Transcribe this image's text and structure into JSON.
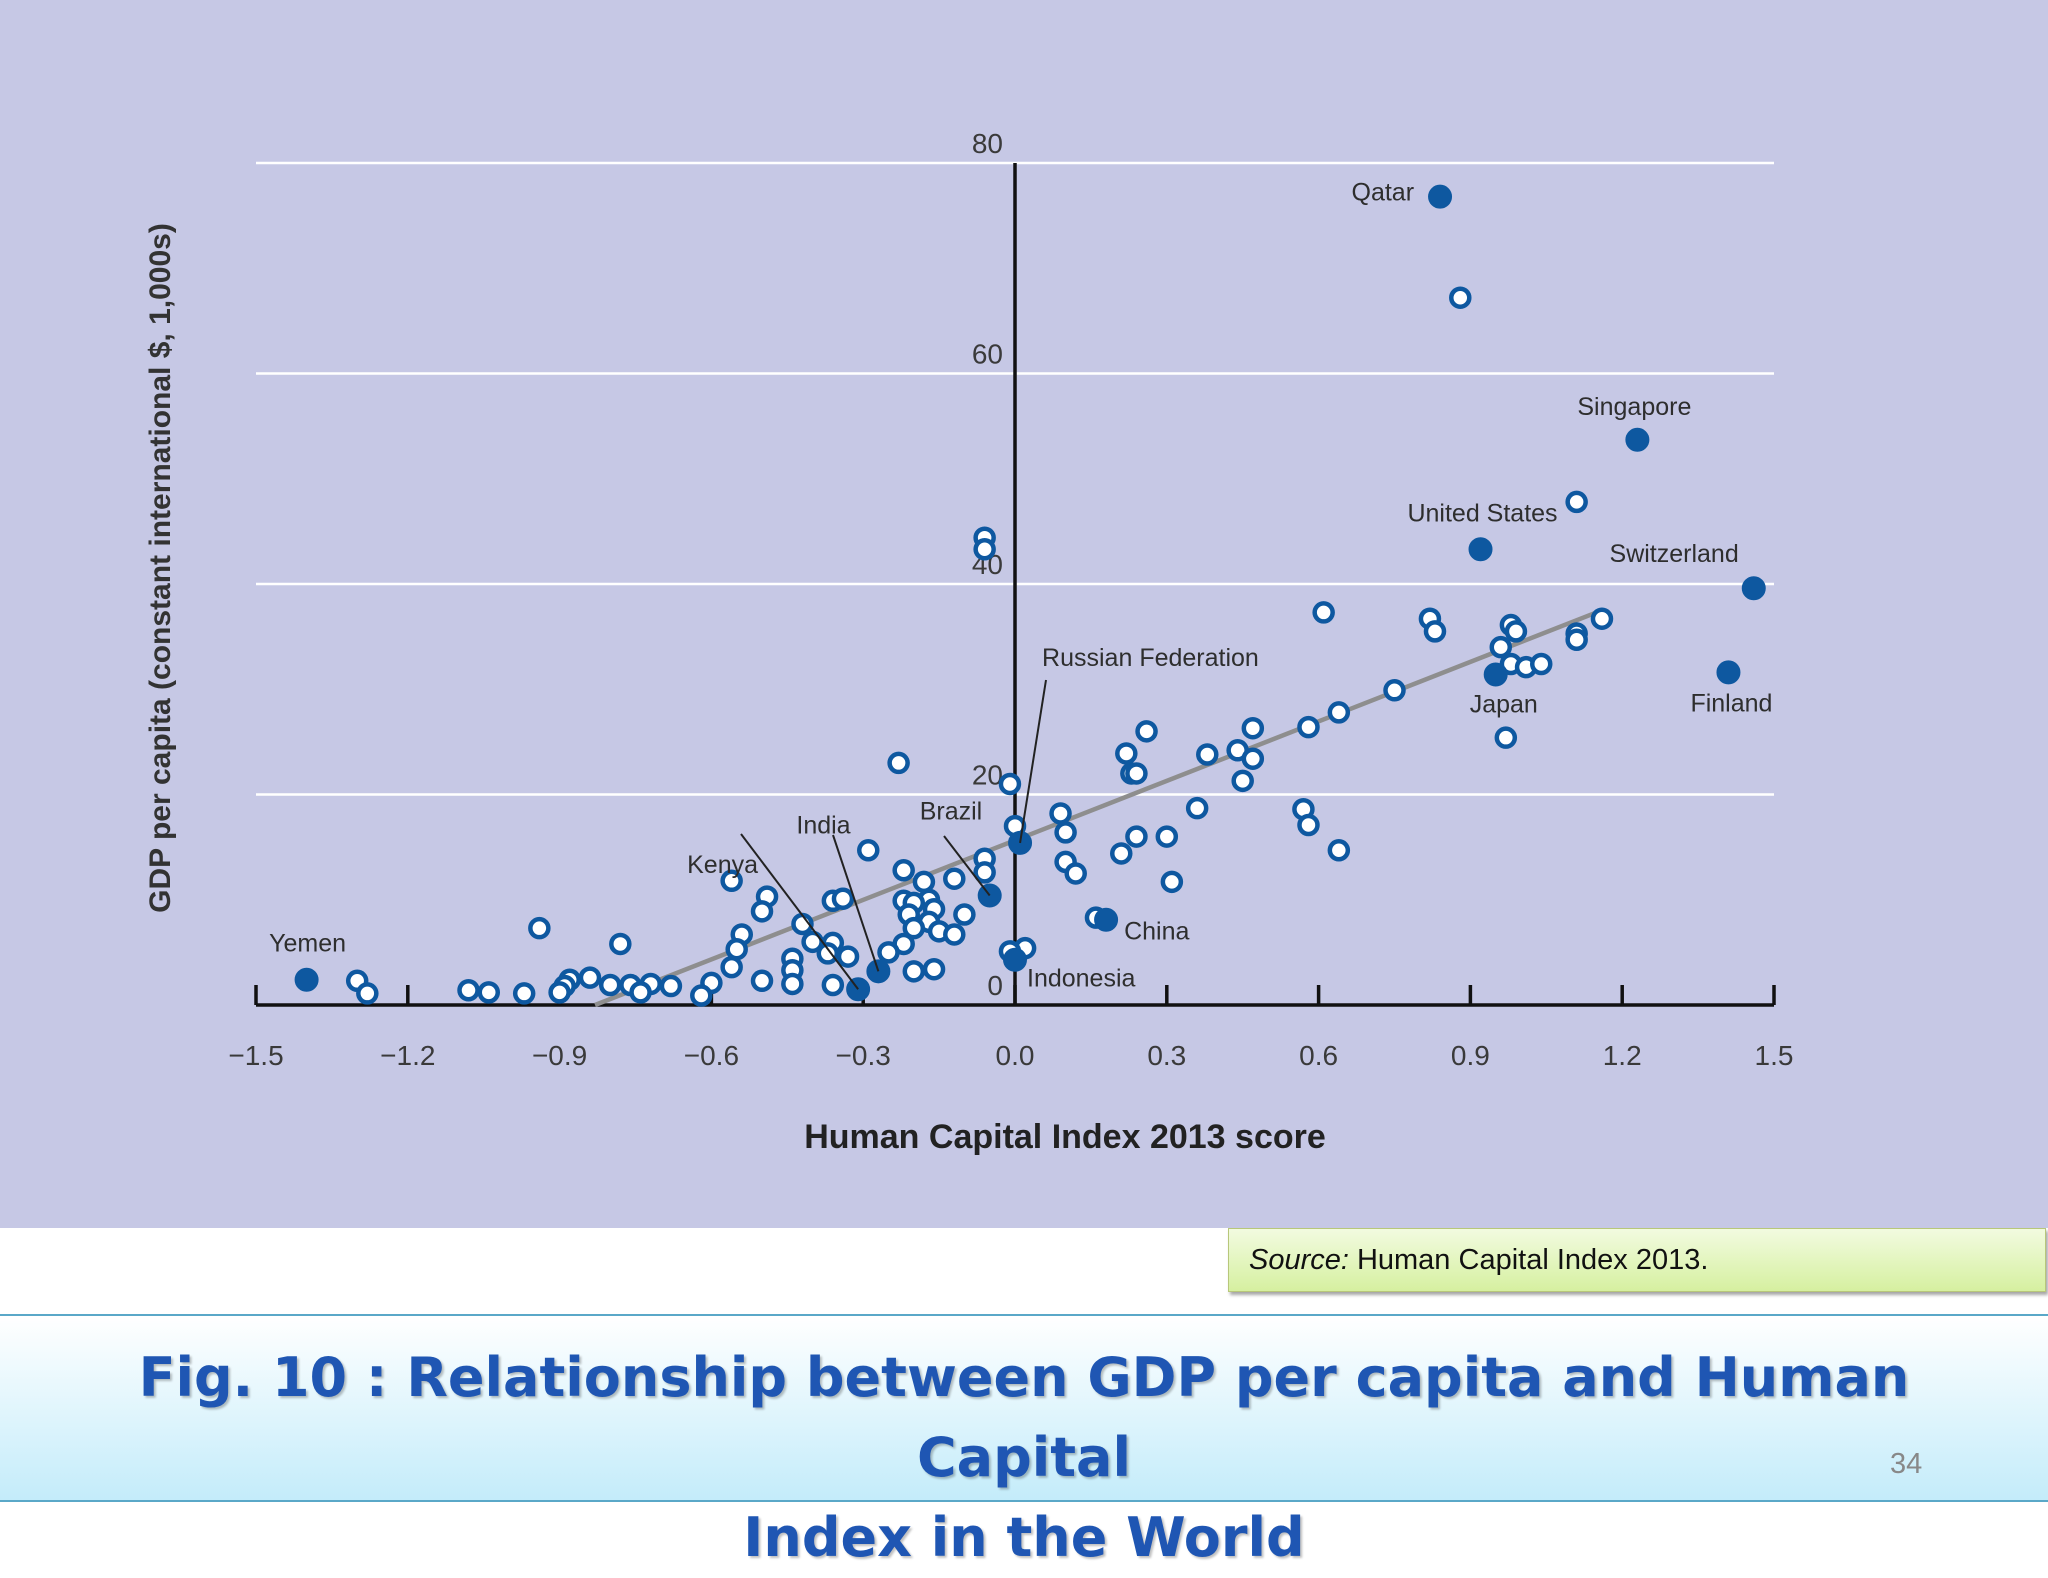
{
  "chart_data": {
    "type": "scatter",
    "xlabel": "Human Capital Index 2013 score",
    "ylabel": "GDP per capita (constant international $, 1,000s)",
    "xlim": [
      -1.5,
      1.5
    ],
    "ylim": [
      0,
      80
    ],
    "x_ticks": [
      "−1.5",
      "−1.2",
      "−0.9",
      "−0.6",
      "−0.3",
      "0.0",
      "0.3",
      "0.6",
      "0.9",
      "1.2",
      "1.5"
    ],
    "x_tick_values": [
      -1.5,
      -1.2,
      -0.9,
      -0.6,
      -0.3,
      0.0,
      0.3,
      0.6,
      0.9,
      1.2,
      1.5
    ],
    "y_ticks": [
      "0",
      "20",
      "40",
      "60",
      "80"
    ],
    "y_tick_values": [
      0,
      20,
      40,
      60,
      80
    ],
    "grid": "horizontal",
    "trend_line": [
      [
        -0.83,
        0.0
      ],
      [
        1.16,
        37.5
      ]
    ],
    "highlighted_points": [
      {
        "label": "Qatar",
        "x": 0.84,
        "y": 76.8
      },
      {
        "label": "Singapore",
        "x": 1.23,
        "y": 53.7
      },
      {
        "label": "United States",
        "x": 0.92,
        "y": 43.3
      },
      {
        "label": "Switzerland",
        "x": 1.46,
        "y": 39.6
      },
      {
        "label": "Japan",
        "x": 0.95,
        "y": 31.4
      },
      {
        "label": "Finland",
        "x": 1.41,
        "y": 31.6
      },
      {
        "label": "Russian Federation",
        "x": 0.01,
        "y": 15.4
      },
      {
        "label": "Brazil",
        "x": -0.05,
        "y": 10.4
      },
      {
        "label": "China",
        "x": 0.18,
        "y": 8.1
      },
      {
        "label": "Indonesia",
        "x": 0.0,
        "y": 4.3
      },
      {
        "label": "India",
        "x": -0.27,
        "y": 3.2
      },
      {
        "label": "Kenya",
        "x": -0.31,
        "y": 1.5
      },
      {
        "label": "Yemen",
        "x": -1.4,
        "y": 2.4
      }
    ],
    "other_points": [
      [
        0.88,
        67.2
      ],
      [
        1.11,
        47.8
      ],
      [
        -0.06,
        44.4
      ],
      [
        -0.06,
        43.3
      ],
      [
        0.61,
        37.3
      ],
      [
        0.82,
        36.7
      ],
      [
        0.83,
        35.5
      ],
      [
        0.98,
        36.1
      ],
      [
        0.99,
        35.5
      ],
      [
        1.16,
        36.7
      ],
      [
        1.11,
        35.3
      ],
      [
        1.11,
        34.7
      ],
      [
        0.96,
        34.0
      ],
      [
        0.98,
        32.4
      ],
      [
        1.01,
        32.1
      ],
      [
        1.04,
        32.4
      ],
      [
        0.97,
        25.4
      ],
      [
        0.75,
        29.9
      ],
      [
        0.64,
        27.8
      ],
      [
        0.58,
        26.4
      ],
      [
        0.47,
        26.3
      ],
      [
        0.26,
        26.0
      ],
      [
        0.22,
        23.9
      ],
      [
        0.38,
        23.8
      ],
      [
        0.44,
        24.2
      ],
      [
        0.47,
        23.4
      ],
      [
        0.23,
        22.0
      ],
      [
        0.24,
        22.0
      ],
      [
        0.45,
        21.3
      ],
      [
        -0.23,
        23.0
      ],
      [
        -0.01,
        21.0
      ],
      [
        0.36,
        18.7
      ],
      [
        0.57,
        18.6
      ],
      [
        0.58,
        17.1
      ],
      [
        0.64,
        14.7
      ],
      [
        0.09,
        18.2
      ],
      [
        0.1,
        16.4
      ],
      [
        0.24,
        16.0
      ],
      [
        0.3,
        16.0
      ],
      [
        0.0,
        17.0
      ],
      [
        -0.29,
        14.7
      ],
      [
        0.1,
        13.6
      ],
      [
        0.12,
        12.5
      ],
      [
        0.21,
        14.4
      ],
      [
        0.31,
        11.7
      ],
      [
        -0.22,
        12.8
      ],
      [
        -0.06,
        13.9
      ],
      [
        -0.06,
        12.6
      ],
      [
        -0.18,
        11.7
      ],
      [
        -0.12,
        12.0
      ],
      [
        -0.56,
        11.8
      ],
      [
        -0.49,
        10.3
      ],
      [
        -0.36,
        9.9
      ],
      [
        -0.34,
        10.1
      ],
      [
        -0.22,
        9.9
      ],
      [
        -0.17,
        10.0
      ],
      [
        -0.2,
        9.7
      ],
      [
        -0.16,
        9.1
      ],
      [
        -0.5,
        8.9
      ],
      [
        -0.94,
        7.3
      ],
      [
        -0.21,
        8.6
      ],
      [
        -0.17,
        7.9
      ],
      [
        -0.1,
        8.6
      ],
      [
        -0.42,
        7.7
      ],
      [
        -0.2,
        7.3
      ],
      [
        -0.15,
        7.0
      ],
      [
        -0.12,
        6.7
      ],
      [
        0.16,
        8.3
      ],
      [
        -0.54,
        6.7
      ],
      [
        -0.4,
        6.0
      ],
      [
        -0.36,
        5.9
      ],
      [
        -0.22,
        5.8
      ],
      [
        -0.78,
        5.8
      ],
      [
        -0.55,
        5.3
      ],
      [
        -0.25,
        5.0
      ],
      [
        -0.37,
        4.9
      ],
      [
        -0.33,
        4.6
      ],
      [
        -0.44,
        4.4
      ],
      [
        0.02,
        5.4
      ],
      [
        -0.01,
        5.1
      ],
      [
        -0.56,
        3.6
      ],
      [
        -0.44,
        3.3
      ],
      [
        -0.16,
        3.4
      ],
      [
        -0.2,
        3.2
      ],
      [
        -0.88,
        2.4
      ],
      [
        -0.84,
        2.6
      ],
      [
        -0.5,
        2.3
      ],
      [
        -0.6,
        2.1
      ],
      [
        -0.44,
        2.0
      ],
      [
        -0.36,
        1.9
      ],
      [
        -0.89,
        1.8
      ],
      [
        -0.8,
        1.9
      ],
      [
        -0.76,
        1.9
      ],
      [
        -0.72,
        2.0
      ],
      [
        -0.68,
        1.8
      ],
      [
        -1.3,
        2.3
      ],
      [
        -1.28,
        1.1
      ],
      [
        -1.08,
        1.4
      ],
      [
        -1.04,
        1.2
      ],
      [
        -0.97,
        1.1
      ],
      [
        -0.9,
        1.2
      ],
      [
        -0.74,
        1.2
      ],
      [
        -0.62,
        0.9
      ]
    ]
  },
  "source": {
    "prefix": "Source:",
    "text": "Human Capital Index 2013."
  },
  "caption": {
    "line1": "Fig. 10 : Relationship between GDP per capita and  Human Capital",
    "line2": "Index in the World"
  },
  "page_number": "34",
  "colors": {
    "panel_bg": "#c6c8e5",
    "highlight_point": "#0e58a0",
    "open_point_stroke": "#0e58a0",
    "trend_line": "#8e8e8e",
    "caption_text": "#1f56b3"
  }
}
